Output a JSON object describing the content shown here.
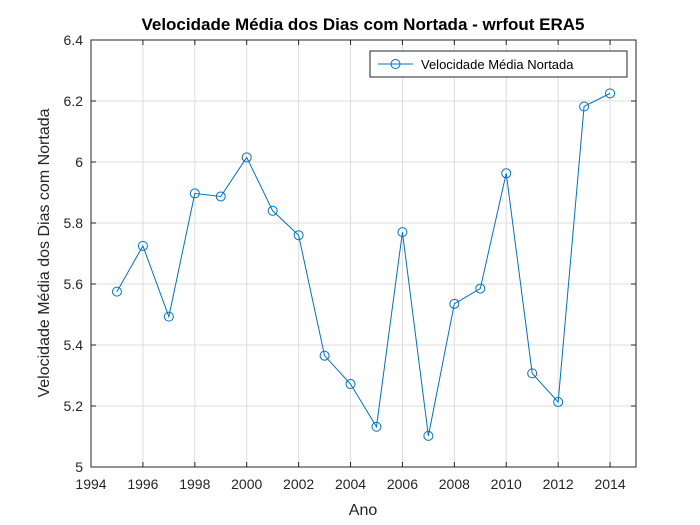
{
  "chart_data": {
    "type": "line",
    "title": "Velocidade Média dos Dias com Nortada - wrfout ERA5",
    "xlabel": "Ano",
    "ylabel": "Velocidade Média dos Dias com Nortada",
    "xlim": [
      1994,
      2015
    ],
    "ylim": [
      5,
      6.4
    ],
    "xticks": [
      1994,
      1996,
      1998,
      2000,
      2002,
      2004,
      2006,
      2008,
      2010,
      2012,
      2014
    ],
    "yticks": [
      5,
      5.2,
      5.4,
      5.6,
      5.8,
      6,
      6.2,
      6.4
    ],
    "ytick_labels": [
      "5",
      "5.2",
      "5.4",
      "5.6",
      "5.8",
      "6",
      "6.2",
      "6.4"
    ],
    "grid": true,
    "legend_position": "top-right",
    "series": [
      {
        "name": "Velocidade Média Nortada",
        "color": "#0072BD",
        "marker": "circle",
        "x": [
          1995,
          1996,
          1997,
          1998,
          1999,
          2000,
          2001,
          2002,
          2003,
          2004,
          2005,
          2006,
          2007,
          2008,
          2009,
          2010,
          2011,
          2012,
          2013,
          2014
        ],
        "y": [
          5.575,
          5.725,
          5.493,
          5.897,
          5.887,
          6.015,
          5.84,
          5.76,
          5.365,
          5.272,
          5.132,
          5.77,
          5.102,
          5.535,
          5.585,
          5.963,
          5.307,
          5.213,
          6.182,
          6.225
        ]
      }
    ]
  }
}
